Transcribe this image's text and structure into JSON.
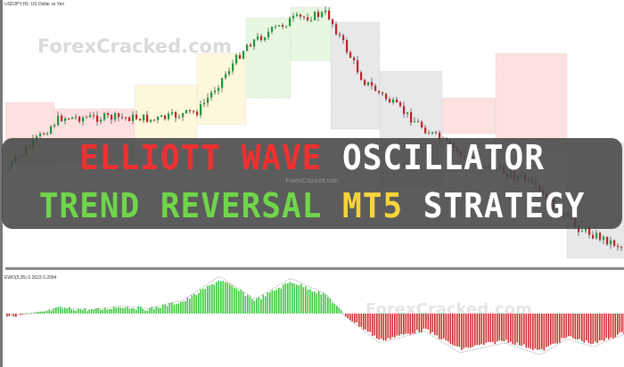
{
  "chart": {
    "symbol_header": "USDJPY,H1: US Dollar vs Yen",
    "indicator_header": "EWO(5,35) 0.2623 0.2094",
    "colors": {
      "bull_candle": "#1a9a3a",
      "bear_candle": "#c0202a",
      "hist_up": "#3cc83c",
      "hist_down": "#d03030",
      "box_pink": "#fde0e0",
      "box_yellow": "#fdf8dc",
      "box_green": "#e8f8e0",
      "box_gray": "#e8e8e8"
    }
  },
  "watermark": {
    "top": "ForexCracked.com",
    "bottom": "ForexCracked.com",
    "banner": "ForexCracked.com"
  },
  "banner": {
    "line1": [
      {
        "text": "ELLIOTT WAVE",
        "color": "red"
      },
      {
        "text": "OSCILLATOR",
        "color": "white"
      }
    ],
    "line2": [
      {
        "text": "TREND REVERSAL",
        "color": "green"
      },
      {
        "text": "MT5",
        "color": "yellow"
      },
      {
        "text": "STRATEGY",
        "color": "white"
      }
    ]
  }
}
